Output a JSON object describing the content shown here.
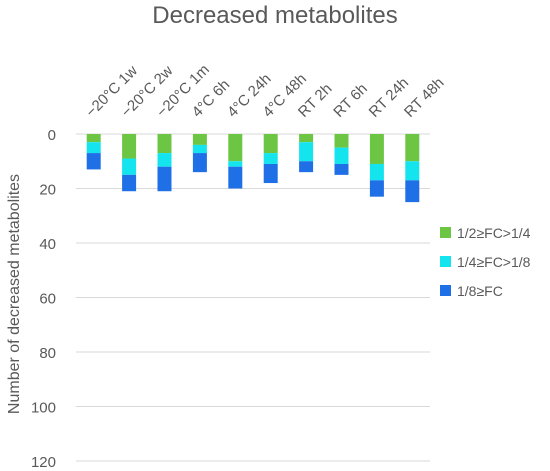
{
  "chart_data": {
    "type": "bar",
    "stacked": true,
    "title": "Decreased metabolites",
    "xlabel": "",
    "ylabel": "Number of decreased metabolites",
    "y_axis_inverted": true,
    "x_axis_position": "top",
    "ylim": [
      0,
      120
    ],
    "yticks": [
      0,
      20,
      40,
      60,
      80,
      100,
      120
    ],
    "grid": true,
    "legend_position": "right",
    "categories": [
      "−20°C 1w",
      "−20°C 2w",
      "−20°C 1m",
      "4°C 6h",
      "4°C 24h",
      "4°C 48h",
      "RT 2h",
      "RT 6h",
      "RT 24h",
      "RT 48h"
    ],
    "series": [
      {
        "name": "1/2≥FC>1/4",
        "color": "#6cc644",
        "values": [
          3,
          9,
          7,
          4,
          10,
          7,
          3,
          5,
          11,
          10
        ]
      },
      {
        "name": "1/4≥FC>1/8",
        "color": "#14e4ee",
        "values": [
          4,
          6,
          5,
          3,
          2,
          4,
          7,
          6,
          6,
          7
        ]
      },
      {
        "name": "1/8≥FC",
        "color": "#1f6fe6",
        "values": [
          6,
          6,
          9,
          7,
          8,
          7,
          4,
          4,
          6,
          8
        ]
      }
    ]
  }
}
